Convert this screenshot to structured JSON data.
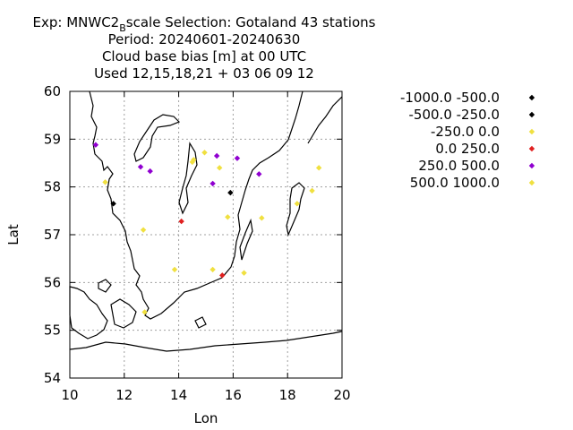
{
  "chart_data": {
    "type": "scatter",
    "title_lines": [
      {
        "pre": "Exp: MNWC2",
        "sub": "B",
        "post": "scale   Selection: Gotaland     43 stations"
      },
      {
        "pre": "Period: 20240601-20240630",
        "sub": "",
        "post": ""
      },
      {
        "pre": "Cloud base bias [m] at  00 UTC",
        "sub": "",
        "post": ""
      },
      {
        "pre": "Used 12,15,18,21 + 03 06 09 12",
        "sub": "",
        "post": ""
      }
    ],
    "xlabel": "Lon",
    "ylabel": "Lat",
    "xlim": [
      10,
      20
    ],
    "ylim": [
      54,
      60
    ],
    "xticks": [
      10,
      12,
      14,
      16,
      18,
      20
    ],
    "yticks": [
      54,
      55,
      56,
      57,
      58,
      59,
      60
    ],
    "grid": true,
    "legend_position": "right",
    "series": [
      {
        "name": "-1000.0 -500.0",
        "color": "#000000",
        "points": []
      },
      {
        "name": "-500.0 -250.0",
        "color": "#000000",
        "points": [
          [
            11.6,
            57.65
          ],
          [
            15.9,
            57.88
          ]
        ]
      },
      {
        "name": "-250.0 0.0",
        "color": "#f0e040",
        "points": [
          [
            11.3,
            58.1
          ],
          [
            14.5,
            58.52
          ],
          [
            14.55,
            58.57
          ],
          [
            14.95,
            58.72
          ],
          [
            15.5,
            58.4
          ],
          [
            19.15,
            58.4
          ],
          [
            18.9,
            57.92
          ],
          [
            18.35,
            57.65
          ],
          [
            15.8,
            57.37
          ],
          [
            17.05,
            57.35
          ],
          [
            12.7,
            57.1
          ],
          [
            13.85,
            56.27
          ],
          [
            15.25,
            56.27
          ],
          [
            16.4,
            56.2
          ],
          [
            12.75,
            55.38
          ]
        ]
      },
      {
        "name": "0.0 250.0",
        "color": "#e02020",
        "points": [
          [
            14.1,
            57.28
          ],
          [
            15.6,
            56.15
          ]
        ]
      },
      {
        "name": "250.0 500.0",
        "color": "#9000d0",
        "points": [
          [
            10.95,
            58.88
          ],
          [
            12.6,
            58.42
          ],
          [
            12.95,
            58.33
          ],
          [
            15.4,
            58.65
          ],
          [
            16.15,
            58.6
          ],
          [
            16.95,
            58.27
          ],
          [
            15.25,
            58.07
          ]
        ]
      },
      {
        "name": "500.0 1000.0",
        "color": "#f0e040",
        "points": []
      }
    ]
  }
}
